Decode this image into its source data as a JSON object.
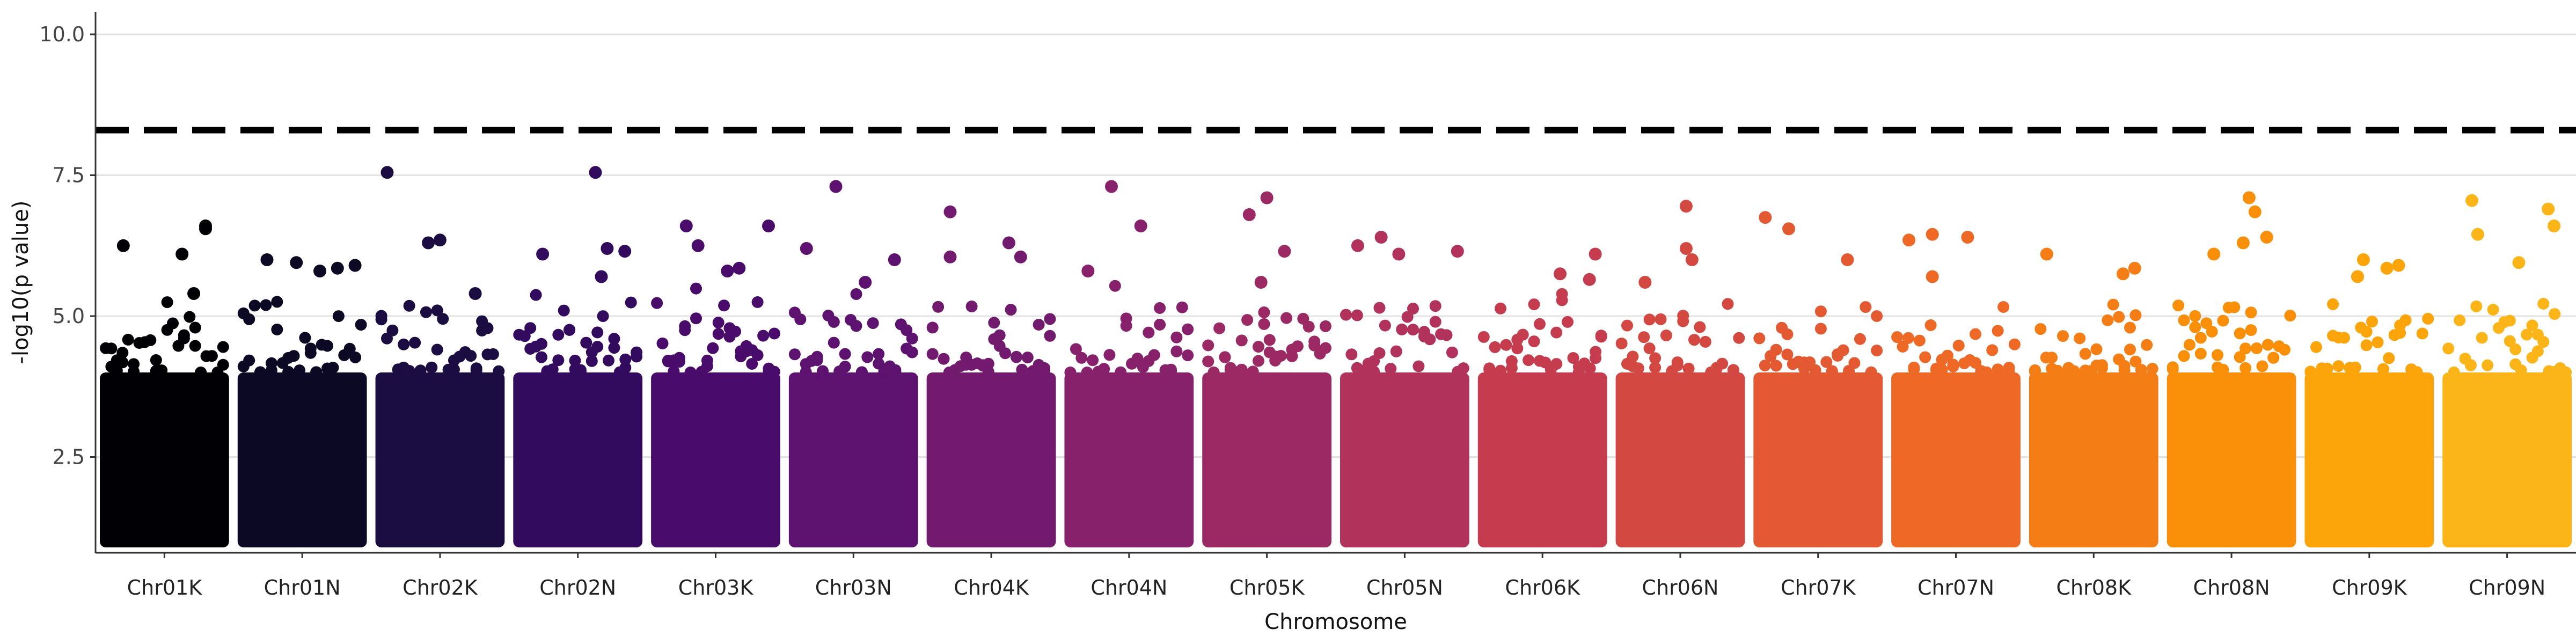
{
  "chart_data": {
    "type": "scatter",
    "xlabel": "Chromosome",
    "ylabel": "-log10(p value)",
    "ylim": [
      0.8,
      10.4
    ],
    "yticks": [
      2.5,
      5.0,
      7.5,
      10.0
    ],
    "ytick_labels": [
      "2.5",
      "5.0",
      "7.5",
      "10.0"
    ],
    "grid": "horizontal",
    "threshold": 8.3,
    "categories": [
      "Chr01K",
      "Chr01N",
      "Chr02K",
      "Chr02N",
      "Chr03K",
      "Chr03N",
      "Chr04K",
      "Chr04N",
      "Chr05K",
      "Chr05N",
      "Chr06K",
      "Chr06N",
      "Chr07K",
      "Chr07N",
      "Chr08K",
      "Chr08N",
      "Chr09K",
      "Chr09N"
    ],
    "colors": [
      "#000004",
      "#0b0924",
      "#1b0c41",
      "#320a5e",
      "#4a0c6b",
      "#5c126e",
      "#721a6e",
      "#87216b",
      "#9b2964",
      "#b1325a",
      "#c43c4e",
      "#d44842",
      "#e35932",
      "#ed6925",
      "#f57d15",
      "#f98e09",
      "#fca50a",
      "#fcb519"
    ],
    "peaks": [
      {
        "chromosome": "Chr01K",
        "points": [
          [
            0.85,
            6.55
          ],
          [
            0.15,
            6.25
          ],
          [
            0.85,
            6.6
          ],
          [
            0.65,
            6.1
          ],
          [
            0.75,
            5.4
          ]
        ]
      },
      {
        "chromosome": "Chr01N",
        "points": [
          [
            0.2,
            6.0
          ],
          [
            0.45,
            5.95
          ],
          [
            0.95,
            5.9
          ],
          [
            0.65,
            5.8
          ],
          [
            0.8,
            5.85
          ]
        ]
      },
      {
        "chromosome": "Chr02K",
        "points": [
          [
            0.05,
            7.55
          ],
          [
            0.4,
            6.3
          ],
          [
            0.5,
            6.35
          ],
          [
            0.8,
            5.4
          ]
        ]
      },
      {
        "chromosome": "Chr02N",
        "points": [
          [
            0.65,
            7.55
          ],
          [
            0.2,
            6.1
          ],
          [
            0.75,
            6.2
          ],
          [
            0.9,
            6.15
          ],
          [
            0.7,
            5.7
          ]
        ]
      },
      {
        "chromosome": "Chr03K",
        "points": [
          [
            0.25,
            6.6
          ],
          [
            0.35,
            6.25
          ],
          [
            0.95,
            6.6
          ],
          [
            0.6,
            5.8
          ],
          [
            0.7,
            5.85
          ]
        ]
      },
      {
        "chromosome": "Chr03N",
        "points": [
          [
            0.35,
            7.3
          ],
          [
            0.1,
            6.2
          ],
          [
            0.6,
            5.6
          ],
          [
            0.85,
            6.0
          ]
        ]
      },
      {
        "chromosome": "Chr04K",
        "points": [
          [
            0.15,
            6.85
          ],
          [
            0.65,
            6.3
          ],
          [
            0.75,
            6.05
          ],
          [
            0.15,
            6.05
          ]
        ]
      },
      {
        "chromosome": "Chr04N",
        "points": [
          [
            0.35,
            7.3
          ],
          [
            0.6,
            6.6
          ],
          [
            0.15,
            5.8
          ]
        ]
      },
      {
        "chromosome": "Chr05K",
        "points": [
          [
            0.35,
            6.8
          ],
          [
            0.5,
            7.1
          ],
          [
            0.65,
            6.15
          ],
          [
            0.45,
            5.6
          ]
        ]
      },
      {
        "chromosome": "Chr05N",
        "points": [
          [
            0.1,
            6.25
          ],
          [
            0.3,
            6.4
          ],
          [
            0.45,
            6.1
          ],
          [
            0.95,
            6.15
          ]
        ]
      },
      {
        "chromosome": "Chr06K",
        "points": [
          [
            0.65,
            5.75
          ],
          [
            0.9,
            5.65
          ],
          [
            0.95,
            6.1
          ]
        ]
      },
      {
        "chromosome": "Chr06N",
        "points": [
          [
            0.55,
            6.95
          ],
          [
            0.55,
            6.2
          ],
          [
            0.6,
            6.0
          ],
          [
            0.2,
            5.6
          ]
        ]
      },
      {
        "chromosome": "Chr07K",
        "points": [
          [
            0.05,
            6.75
          ],
          [
            0.25,
            6.55
          ],
          [
            0.75,
            6.0
          ]
        ]
      },
      {
        "chromosome": "Chr07N",
        "points": [
          [
            0.1,
            6.35
          ],
          [
            0.3,
            6.45
          ],
          [
            0.6,
            6.4
          ],
          [
            0.3,
            5.7
          ]
        ]
      },
      {
        "chromosome": "Chr08K",
        "points": [
          [
            0.1,
            6.1
          ],
          [
            0.85,
            5.85
          ],
          [
            0.75,
            5.75
          ]
        ]
      },
      {
        "chromosome": "Chr08N",
        "points": [
          [
            0.65,
            7.1
          ],
          [
            0.7,
            6.85
          ],
          [
            0.35,
            6.1
          ],
          [
            0.6,
            6.3
          ],
          [
            0.8,
            6.4
          ]
        ]
      },
      {
        "chromosome": "Chr09K",
        "points": [
          [
            0.45,
            6.0
          ],
          [
            0.65,
            5.85
          ],
          [
            0.75,
            5.9
          ],
          [
            0.4,
            5.7
          ]
        ]
      },
      {
        "chromosome": "Chr09N",
        "points": [
          [
            0.2,
            7.05
          ],
          [
            0.85,
            6.9
          ],
          [
            0.9,
            6.6
          ],
          [
            0.25,
            6.45
          ],
          [
            0.6,
            5.95
          ]
        ]
      }
    ]
  }
}
